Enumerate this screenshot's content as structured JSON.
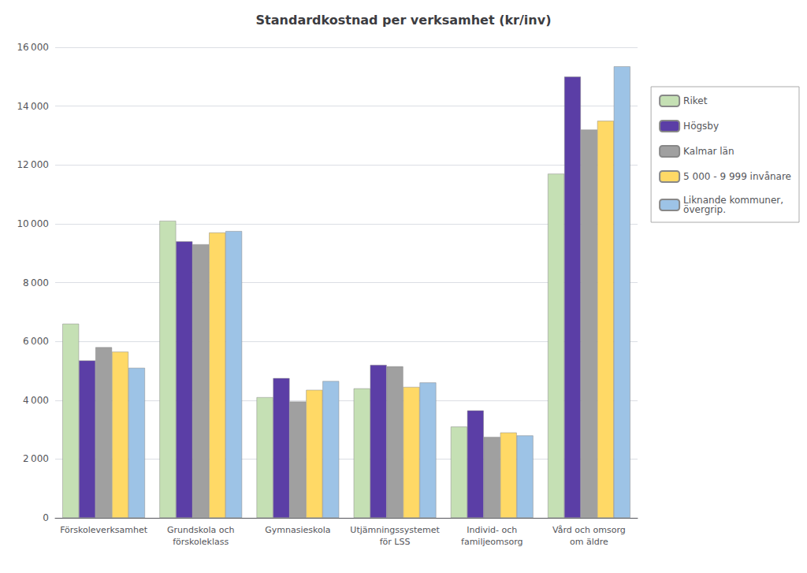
{
  "chart_data": {
    "type": "bar",
    "title": "Standardkostnad per verksamhet (kr/inv)",
    "categories": [
      "Förskoleverksamhet",
      "Grundskola och\nförskoleklass",
      "Gymnasieskola",
      "Utjämningssystemet\nför LSS",
      "Individ- och\nfamiljeomsorg",
      "Vård och omsorg\nom äldre"
    ],
    "series": [
      {
        "name": "Riket",
        "color": "#c5e0b4",
        "values": [
          6600,
          10100,
          4100,
          4400,
          3100,
          11700
        ]
      },
      {
        "name": "Högsby",
        "color": "#5b3ea6",
        "values": [
          5350,
          9400,
          4750,
          5200,
          3650,
          15000
        ]
      },
      {
        "name": "Kalmar län",
        "color": "#a0a0a0",
        "values": [
          5800,
          9300,
          3950,
          5150,
          2750,
          13200
        ]
      },
      {
        "name": "5 000 - 9 999 invånare",
        "color": "#ffd966",
        "values": [
          5650,
          9700,
          4350,
          4450,
          2900,
          13500
        ]
      },
      {
        "name": "Liknande kommuner,\növergrip.",
        "color": "#9dc3e6",
        "values": [
          5100,
          9750,
          4650,
          4600,
          2800,
          15350
        ]
      }
    ],
    "ylim": [
      0,
      16000
    ],
    "yticks": [
      0,
      {
        "value": 2000,
        "label": "2 000"
      },
      {
        "value": 4000,
        "label": "4 000"
      },
      {
        "value": 6000,
        "label": "6 000"
      },
      {
        "value": 8000,
        "label": "8 000"
      },
      {
        "value": 10000,
        "label": "10 000"
      },
      {
        "value": 12000,
        "label": "12 000"
      },
      {
        "value": 14000,
        "label": "14 000"
      },
      {
        "value": 16000,
        "label": "16 000"
      }
    ],
    "grid": true,
    "legend": "right"
  }
}
